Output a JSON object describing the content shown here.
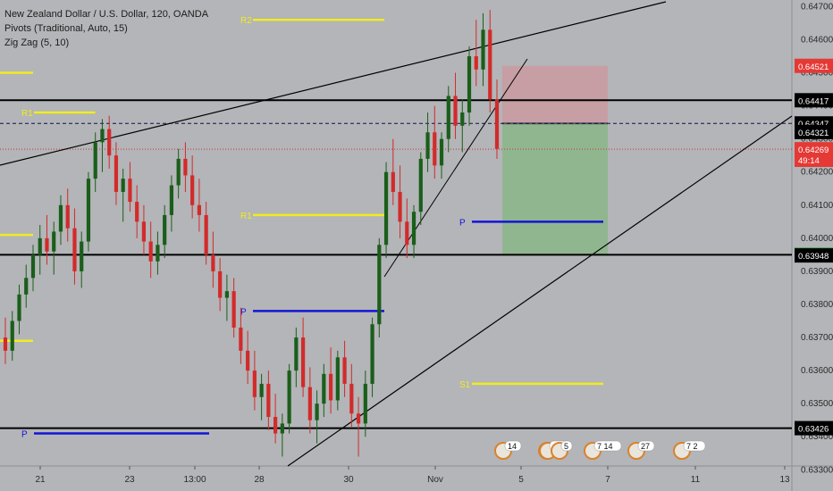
{
  "legend": {
    "title": "New Zealand Dollar / U.S. Dollar, 120, OANDA",
    "pivots": "Pivots (Traditional, Auto, 15)",
    "zigzag": "Zig Zag (5, 10)"
  },
  "colors": {
    "background": "#b3b5b8",
    "bull": "#1a5e1a",
    "bear": "#d32a2a",
    "pivot_r": "#f0ec20",
    "pivot_p": "#1414d8",
    "hline": "#000000",
    "stop_zone": "#c99aa0",
    "target_zone": "#8cb68c"
  },
  "chart_data": {
    "type": "candlestick",
    "symbol": "NZDUSD",
    "timeframe": "120",
    "y_range": [
      0.6329,
      0.6472
    ],
    "y_ticks": [
      "0.64700",
      "0.64600",
      "0.64500",
      "0.64400",
      "0.64300",
      "0.64200",
      "0.64100",
      "0.64000",
      "0.63900",
      "0.63800",
      "0.63700",
      "0.63600",
      "0.63500",
      "0.63400",
      "0.63300"
    ],
    "x_ticks": [
      "21",
      "23",
      "13:00",
      "28",
      "30",
      "Nov",
      "5",
      "7",
      "11",
      "13"
    ],
    "price_tags": [
      {
        "label": "0.64521",
        "value": 0.64521,
        "bg": "#e53935",
        "fg": "#ffffff"
      },
      {
        "label": "0.64417",
        "value": 0.64417,
        "bg": "#000000",
        "fg": "#ffffff"
      },
      {
        "label": "0.64347",
        "value": 0.64347,
        "bg": "#000000",
        "fg": "#ffffff"
      },
      {
        "label": "0.64321",
        "value": 0.64321,
        "bg": "#000000",
        "fg": "#ffffff"
      },
      {
        "label": "0.64269",
        "value": 0.64269,
        "bg": "#e53935",
        "fg": "#ffffff"
      },
      {
        "label": "49:14",
        "value": 0.64237,
        "bg": "#e53935",
        "fg": "#ffffff"
      },
      {
        "label": "0.63950",
        "value": 0.6395,
        "bg": "#2e9e3e",
        "fg": "#ffffff"
      },
      {
        "label": "0.63948",
        "value": 0.63948,
        "bg": "#000000",
        "fg": "#ffffff"
      },
      {
        "label": "0.63426",
        "value": 0.63426,
        "bg": "#000000",
        "fg": "#ffffff"
      }
    ],
    "horizontal_lines": [
      0.64417,
      0.6395,
      0.63426
    ],
    "dashed_line": 0.64347,
    "dotted_line": 0.64269,
    "pivot_levels": [
      {
        "label": "R2",
        "kind": "R",
        "value": 0.6466,
        "x_from": 1.0,
        "x_to": 1.6
      },
      {
        "label": "R1",
        "kind": "R",
        "value": 0.6438,
        "x_from": 0.0,
        "x_to": 0.28
      },
      {
        "label": "R1",
        "kind": "R",
        "value": 0.6407,
        "x_from": 1.0,
        "x_to": 1.6
      },
      {
        "label": "P",
        "kind": "P",
        "value": 0.6378,
        "x_from": 1.0,
        "x_to": 1.6
      },
      {
        "label": "P",
        "kind": "P",
        "value": 0.6405,
        "x_from": 2.0,
        "x_to": 2.6
      },
      {
        "label": "S1",
        "kind": "R",
        "value": 0.6356,
        "x_from": 2.0,
        "x_to": 2.6
      },
      {
        "label": "P",
        "kind": "P",
        "value": 0.6341,
        "x_from": 0.0,
        "x_to": 0.8
      }
    ],
    "position": {
      "entry": 0.64347,
      "stop": 0.64521,
      "target": 0.6395
    },
    "ohlc": [
      [
        0.637,
        0.6376,
        0.6362,
        0.6366
      ],
      [
        0.6366,
        0.6378,
        0.6363,
        0.6375
      ],
      [
        0.6375,
        0.6386,
        0.6371,
        0.6383
      ],
      [
        0.6383,
        0.6392,
        0.6379,
        0.6388
      ],
      [
        0.6388,
        0.6398,
        0.6384,
        0.6395
      ],
      [
        0.6395,
        0.6404,
        0.6389,
        0.64
      ],
      [
        0.64,
        0.6407,
        0.6392,
        0.6396
      ],
      [
        0.6396,
        0.6405,
        0.6389,
        0.6402
      ],
      [
        0.6402,
        0.6413,
        0.6398,
        0.641
      ],
      [
        0.641,
        0.6415,
        0.6399,
        0.6403
      ],
      [
        0.6403,
        0.6409,
        0.6386,
        0.639
      ],
      [
        0.639,
        0.6402,
        0.6385,
        0.6399
      ],
      [
        0.6399,
        0.642,
        0.6396,
        0.6418
      ],
      [
        0.6418,
        0.6432,
        0.6414,
        0.6429
      ],
      [
        0.6429,
        0.6436,
        0.642,
        0.6433
      ],
      [
        0.6433,
        0.6437,
        0.6421,
        0.6425
      ],
      [
        0.6425,
        0.6429,
        0.641,
        0.6414
      ],
      [
        0.6414,
        0.6421,
        0.6405,
        0.6418
      ],
      [
        0.6418,
        0.6423,
        0.6408,
        0.6411
      ],
      [
        0.6411,
        0.6416,
        0.64,
        0.6405
      ],
      [
        0.6405,
        0.641,
        0.6395,
        0.6399
      ],
      [
        0.6399,
        0.6405,
        0.6388,
        0.6393
      ],
      [
        0.6393,
        0.6402,
        0.6389,
        0.6398
      ],
      [
        0.6398,
        0.641,
        0.6394,
        0.6407
      ],
      [
        0.6407,
        0.6419,
        0.6402,
        0.6416
      ],
      [
        0.6416,
        0.6427,
        0.6412,
        0.6424
      ],
      [
        0.6424,
        0.6429,
        0.6414,
        0.6419
      ],
      [
        0.6419,
        0.6425,
        0.6406,
        0.641
      ],
      [
        0.641,
        0.6418,
        0.6402,
        0.6407
      ],
      [
        0.6407,
        0.6411,
        0.6392,
        0.6395
      ],
      [
        0.6395,
        0.6402,
        0.6385,
        0.639
      ],
      [
        0.639,
        0.6394,
        0.6378,
        0.6382
      ],
      [
        0.6382,
        0.6389,
        0.6375,
        0.6384
      ],
      [
        0.6384,
        0.6388,
        0.637,
        0.6373
      ],
      [
        0.6373,
        0.6379,
        0.6362,
        0.6366
      ],
      [
        0.6366,
        0.6372,
        0.6356,
        0.636
      ],
      [
        0.636,
        0.6366,
        0.6348,
        0.6352
      ],
      [
        0.6352,
        0.6359,
        0.6345,
        0.6356
      ],
      [
        0.6356,
        0.636,
        0.6342,
        0.6346
      ],
      [
        0.6346,
        0.6353,
        0.6338,
        0.6341
      ],
      [
        0.6341,
        0.6347,
        0.6334,
        0.6344
      ],
      [
        0.6344,
        0.6362,
        0.6341,
        0.636
      ],
      [
        0.636,
        0.6373,
        0.6355,
        0.637
      ],
      [
        0.637,
        0.6376,
        0.6352,
        0.6355
      ],
      [
        0.6355,
        0.6361,
        0.6341,
        0.6345
      ],
      [
        0.6345,
        0.6354,
        0.6338,
        0.635
      ],
      [
        0.635,
        0.6362,
        0.6346,
        0.6359
      ],
      [
        0.6359,
        0.6367,
        0.6347,
        0.6351
      ],
      [
        0.6351,
        0.6366,
        0.6348,
        0.6364
      ],
      [
        0.6364,
        0.6369,
        0.6352,
        0.6356
      ],
      [
        0.6356,
        0.6362,
        0.6343,
        0.6347
      ],
      [
        0.6347,
        0.6352,
        0.6334,
        0.6344
      ],
      [
        0.6344,
        0.636,
        0.634,
        0.6356
      ],
      [
        0.6356,
        0.6376,
        0.6352,
        0.6374
      ],
      [
        0.6374,
        0.64,
        0.637,
        0.6398
      ],
      [
        0.6398,
        0.6423,
        0.6394,
        0.642
      ],
      [
        0.642,
        0.643,
        0.641,
        0.6414
      ],
      [
        0.6414,
        0.6422,
        0.64,
        0.6405
      ],
      [
        0.6405,
        0.6412,
        0.6394,
        0.6398
      ],
      [
        0.6398,
        0.641,
        0.6394,
        0.6408
      ],
      [
        0.6408,
        0.6426,
        0.6404,
        0.6424
      ],
      [
        0.6424,
        0.6438,
        0.642,
        0.6432
      ],
      [
        0.6432,
        0.644,
        0.6418,
        0.6422
      ],
      [
        0.6422,
        0.6432,
        0.6418,
        0.643
      ],
      [
        0.643,
        0.6446,
        0.6426,
        0.6443
      ],
      [
        0.6443,
        0.645,
        0.643,
        0.6434
      ],
      [
        0.6434,
        0.6442,
        0.6426,
        0.6438
      ],
      [
        0.6438,
        0.6458,
        0.6434,
        0.6455
      ],
      [
        0.6455,
        0.6466,
        0.6446,
        0.6451
      ],
      [
        0.6451,
        0.6468,
        0.6446,
        0.6463
      ],
      [
        0.6463,
        0.6469,
        0.6438,
        0.6442
      ],
      [
        0.6442,
        0.6448,
        0.6424,
        0.6427
      ]
    ]
  },
  "events": [
    {
      "count": "14",
      "x": 563
    },
    {
      "count": "8",
      "x": 612
    },
    {
      "count": "4 3",
      "x": 613
    },
    {
      "count": "5",
      "x": 626
    },
    {
      "count": "7 14",
      "x": 663
    },
    {
      "count": "27",
      "x": 712
    },
    {
      "count": "7 2",
      "x": 763
    }
  ]
}
